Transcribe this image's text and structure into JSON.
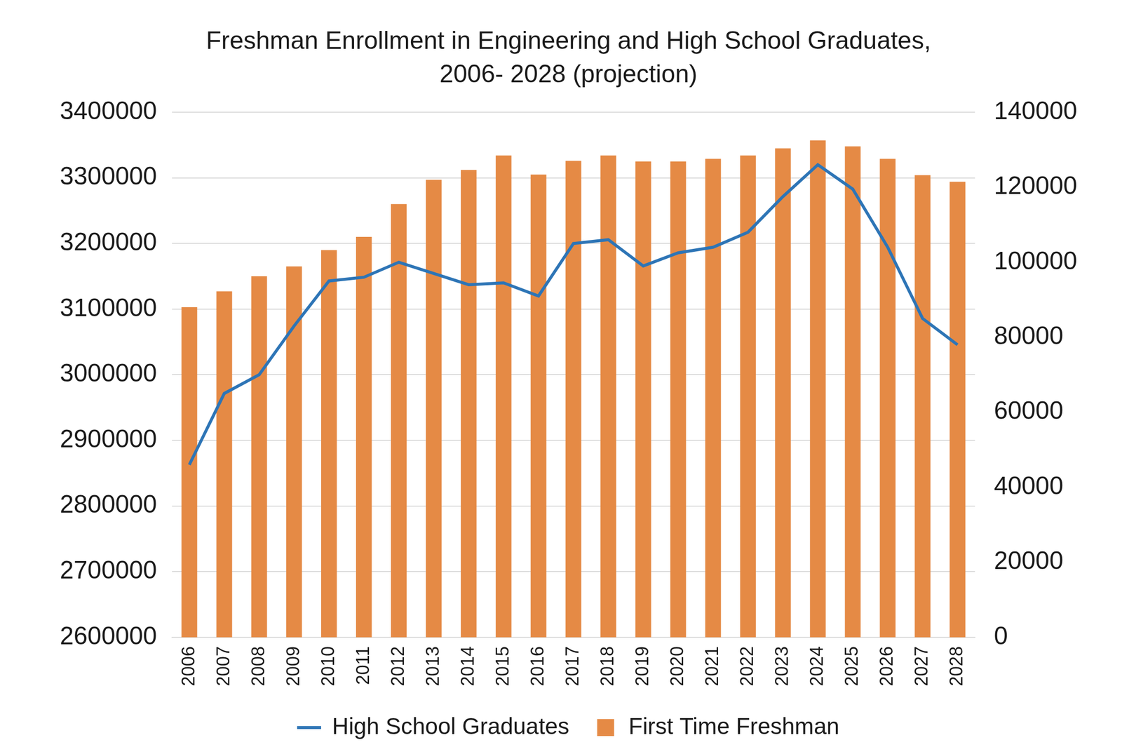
{
  "chart_data": {
    "type": "bar",
    "title": "Freshman Enrollment in Engineering and High School Graduates, 2006- 2028 (projection)",
    "categories": [
      "2006",
      "2007",
      "2008",
      "2009",
      "2010",
      "2011",
      "2012",
      "2013",
      "2014",
      "2015",
      "2016",
      "2017",
      "2018",
      "2019",
      "2020",
      "2021",
      "2022",
      "2023",
      "2024",
      "2025",
      "2026",
      "2027",
      "2028"
    ],
    "series": [
      {
        "name": "First Time Freshman",
        "type": "bar",
        "color": "#e58a45",
        "axis": "y",
        "values": [
          3103000,
          3127000,
          3150000,
          3165000,
          3190000,
          3210000,
          3260000,
          3297000,
          3312000,
          3334000,
          3305000,
          3326000,
          3334000,
          3325000,
          3325000,
          3329000,
          3334000,
          3345000,
          3357000,
          3348000,
          3329000,
          3304000,
          3294000
        ]
      },
      {
        "name": "High School Graduates",
        "type": "line",
        "color": "#2e75b6",
        "axis": "y2",
        "values": [
          46000,
          65000,
          70000,
          83000,
          95000,
          96000,
          100000,
          97000,
          94000,
          94500,
          91000,
          105000,
          106000,
          99000,
          102500,
          104000,
          108000,
          117500,
          126000,
          119500,
          104000,
          85000,
          78000
        ]
      }
    ],
    "ylim": [
      2600000,
      3400000
    ],
    "yticks": [
      2600000,
      2700000,
      2800000,
      2900000,
      3000000,
      3100000,
      3200000,
      3300000,
      3400000
    ],
    "y2lim": [
      0,
      140000
    ],
    "y2ticks": [
      0,
      20000,
      40000,
      60000,
      80000,
      100000,
      120000,
      140000
    ],
    "grid": true,
    "legend": "bottom"
  }
}
